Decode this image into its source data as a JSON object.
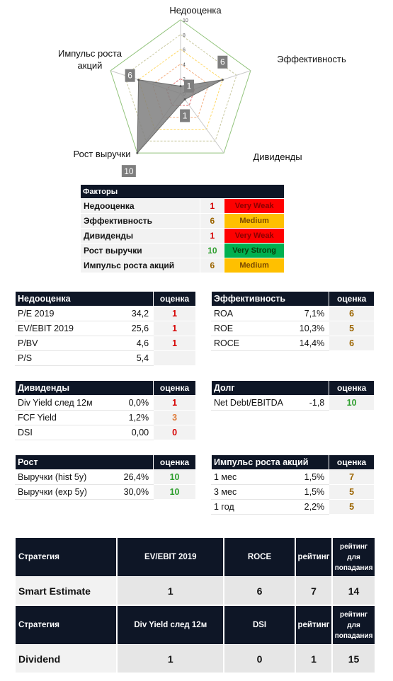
{
  "chart_data": {
    "type": "radar",
    "axes": [
      "Недооценка",
      "Эффективность",
      "Дивиденды",
      "Рост выручки",
      "Импульс роста акций"
    ],
    "values": [
      1,
      6,
      1,
      10,
      6
    ],
    "range": [
      0,
      10
    ],
    "ticks": [
      "0",
      "2",
      "4",
      "6",
      "8",
      "10"
    ],
    "data_labels": [
      "1",
      "6",
      "1",
      "10",
      "6"
    ],
    "ring_colors": [
      "#e06666",
      "#f4b183",
      "#ffd966",
      "#c9c9a0",
      "#93c47d"
    ]
  },
  "factors": {
    "header": "Факторы",
    "rows": [
      {
        "name": "Недооценка",
        "score": "1",
        "rating": "Very Weak",
        "score_color": "#d60000",
        "badge_bg": "#ff0000",
        "badge_fg": "#8b0000"
      },
      {
        "name": "Эффективность",
        "score": "6",
        "rating": "Medium",
        "score_color": "#9c6500",
        "badge_bg": "#ffc000",
        "badge_fg": "#7a4a00"
      },
      {
        "name": "Дивиденды",
        "score": "1",
        "rating": "Very Weak",
        "score_color": "#d60000",
        "badge_bg": "#ff0000",
        "badge_fg": "#8b0000"
      },
      {
        "name": "Рост выручки",
        "score": "10",
        "rating": "Very Strong",
        "score_color": "#2e9e2e",
        "badge_bg": "#00b050",
        "badge_fg": "#0b3d0b"
      },
      {
        "name": "Импульс роста акций",
        "score": "6",
        "rating": "Medium",
        "score_color": "#9c6500",
        "badge_bg": "#ffc000",
        "badge_fg": "#7a4a00"
      }
    ]
  },
  "metrics": {
    "score_header": "оценка",
    "valuation": {
      "title": "Недооценка",
      "rows": [
        {
          "name": "P/E 2019",
          "value": "34,2",
          "score": "1",
          "color": "#d60000"
        },
        {
          "name": "EV/EBIT 2019",
          "value": "25,6",
          "score": "1",
          "color": "#d60000"
        },
        {
          "name": "P/BV",
          "value": "4,6",
          "score": "1",
          "color": "#d60000"
        },
        {
          "name": "P/S",
          "value": "5,4",
          "score": "",
          "color": "#111"
        }
      ]
    },
    "efficiency": {
      "title": "Эффективность",
      "rows": [
        {
          "name": "ROA",
          "value": "7,1%",
          "score": "6",
          "color": "#9c6500"
        },
        {
          "name": "ROE",
          "value": "10,3%",
          "score": "5",
          "color": "#9c6500"
        },
        {
          "name": "ROCE",
          "value": "14,4%",
          "score": "6",
          "color": "#9c6500"
        }
      ]
    },
    "dividends": {
      "title": "Дивиденды",
      "rows": [
        {
          "name": "Div Yield след 12м",
          "value": "0,0%",
          "score": "1",
          "color": "#d60000"
        },
        {
          "name": "FCF Yield",
          "value": "1,2%",
          "score": "3",
          "color": "#e07b39"
        },
        {
          "name": "DSI",
          "value": "0,00",
          "score": "0",
          "color": "#d60000"
        }
      ]
    },
    "debt": {
      "title": "Долг",
      "rows": [
        {
          "name": "Net Debt/EBITDA",
          "value": "-1,8",
          "score": "10",
          "color": "#2e9e2e"
        }
      ]
    },
    "growth": {
      "title": "Рост",
      "rows": [
        {
          "name": "Выручки (hist 5y)",
          "value": "26,4%",
          "score": "10",
          "color": "#2e9e2e"
        },
        {
          "name": "Выручки (exp 5y)",
          "value": "30,0%",
          "score": "10",
          "color": "#2e9e2e"
        }
      ]
    },
    "momentum": {
      "title": "Импульс роста акций",
      "rows": [
        {
          "name": "1 мес",
          "value": "1,5%",
          "score": "7",
          "color": "#9c6500"
        },
        {
          "name": "3 мес",
          "value": "1,5%",
          "score": "5",
          "color": "#9c6500"
        },
        {
          "name": "1 год",
          "value": "2,2%",
          "score": "5",
          "color": "#9c6500"
        }
      ]
    }
  },
  "strategies": [
    {
      "h_strategy": "Стратегия",
      "h_m1": "EV/EBIT 2019",
      "h_m2": "ROCE",
      "h_rating": "рейтинг",
      "h_req": "рейтинг для попадания",
      "name": "Smart Estimate",
      "m1": "1",
      "m2": "6",
      "rating": "7",
      "req": "14"
    },
    {
      "h_strategy": "Стратегия",
      "h_m1": "Div Yield след 12м",
      "h_m2": "DSI",
      "h_rating": "рейтинг",
      "h_req": "рейтинг для попадания",
      "name": "Dividend",
      "m1": "1",
      "m2": "0",
      "rating": "1",
      "req": "15"
    }
  ]
}
